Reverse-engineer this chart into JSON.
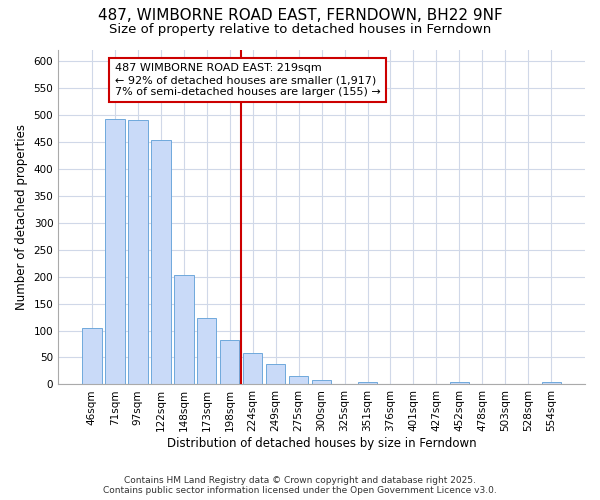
{
  "title1": "487, WIMBORNE ROAD EAST, FERNDOWN, BH22 9NF",
  "title2": "Size of property relative to detached houses in Ferndown",
  "xlabel": "Distribution of detached houses by size in Ferndown",
  "ylabel": "Number of detached properties",
  "categories": [
    "46sqm",
    "71sqm",
    "97sqm",
    "122sqm",
    "148sqm",
    "173sqm",
    "198sqm",
    "224sqm",
    "249sqm",
    "275sqm",
    "300sqm",
    "325sqm",
    "351sqm",
    "376sqm",
    "401sqm",
    "427sqm",
    "452sqm",
    "478sqm",
    "503sqm",
    "528sqm",
    "554sqm"
  ],
  "values": [
    105,
    493,
    490,
    453,
    202,
    123,
    83,
    58,
    37,
    15,
    8,
    0,
    5,
    0,
    0,
    0,
    5,
    0,
    0,
    0,
    5
  ],
  "bar_color": "#c9daf8",
  "bar_edge_color": "#6fa8dc",
  "vline_color": "#cc0000",
  "vline_x": 7.0,
  "annotation_text": "487 WIMBORNE ROAD EAST: 219sqm\n← 92% of detached houses are smaller (1,917)\n7% of semi-detached houses are larger (155) →",
  "annotation_box_facecolor": "#ffffff",
  "annotation_box_edgecolor": "#cc0000",
  "ylim": [
    0,
    620
  ],
  "yticks": [
    0,
    50,
    100,
    150,
    200,
    250,
    300,
    350,
    400,
    450,
    500,
    550,
    600
  ],
  "fig_bg_color": "#ffffff",
  "plot_bg_color": "#ffffff",
  "grid_color": "#d0d8e8",
  "title1_fontsize": 11,
  "title2_fontsize": 9.5,
  "tick_fontsize": 7.5,
  "ylabel_fontsize": 8.5,
  "xlabel_fontsize": 8.5,
  "annot_fontsize": 8,
  "footer_fontsize": 6.5,
  "footer1": "Contains HM Land Registry data © Crown copyright and database right 2025.",
  "footer2": "Contains public sector information licensed under the Open Government Licence v3.0."
}
